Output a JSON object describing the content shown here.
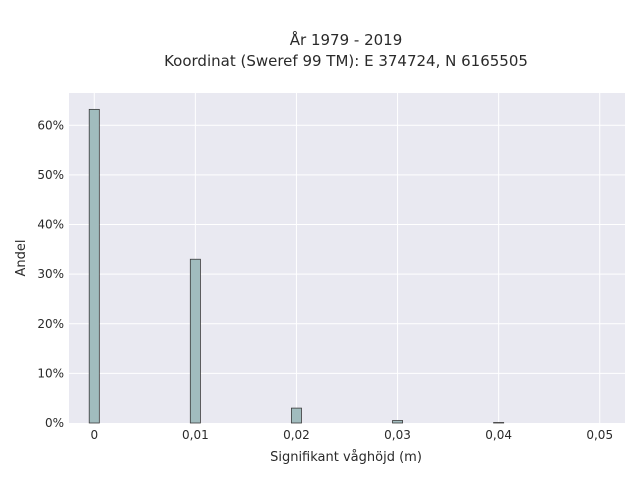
{
  "chart_data": {
    "type": "bar",
    "title_line1": "År 1979 - 2019",
    "title_line2": "Koordinat (Sweref 99 TM): E 374724, N 6165505",
    "xlabel": "Signifikant våghöjd (m)",
    "ylabel": "Andel",
    "x_ticks": [
      {
        "value": 0,
        "label": "0"
      },
      {
        "value": 0.01,
        "label": "0,01"
      },
      {
        "value": 0.02,
        "label": "0,02"
      },
      {
        "value": 0.03,
        "label": "0,03"
      },
      {
        "value": 0.04,
        "label": "0,04"
      },
      {
        "value": 0.05,
        "label": "0,05"
      }
    ],
    "y_ticks": [
      {
        "value": 0,
        "label": "0%"
      },
      {
        "value": 10,
        "label": "10%"
      },
      {
        "value": 20,
        "label": "20%"
      },
      {
        "value": 30,
        "label": "30%"
      },
      {
        "value": 40,
        "label": "40%"
      },
      {
        "value": 50,
        "label": "50%"
      },
      {
        "value": 60,
        "label": "60%"
      }
    ],
    "xlim": [
      -0.0025,
      0.0525
    ],
    "ylim": [
      0,
      66.5
    ],
    "bar_width": 0.001,
    "x": [
      0,
      0.01,
      0.02,
      0.03,
      0.04
    ],
    "values": [
      63.2,
      33.0,
      3.0,
      0.5,
      0.1
    ],
    "grid": true,
    "colors": {
      "bar_fill": "#a1bcbe",
      "bar_stroke": "#3b3b3b",
      "plot_bg": "#e9e9f1",
      "grid": "#ffffff"
    }
  }
}
